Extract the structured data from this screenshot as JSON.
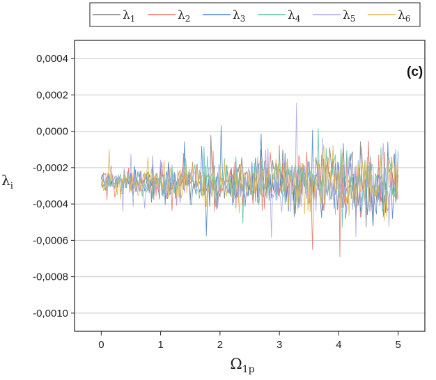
{
  "chart_data": {
    "type": "line",
    "title": "",
    "annotation": "(c)",
    "xlabel": {
      "main": "Ω",
      "sub": "1p"
    },
    "ylabel": {
      "main": "λ",
      "sub": "i"
    },
    "xlim": [
      -0.45,
      5.45
    ],
    "ylim": [
      -0.0011,
      0.0005
    ],
    "x_ticks": [
      0,
      1,
      2,
      3,
      4,
      5
    ],
    "x_tick_labels": [
      "0",
      "1",
      "2",
      "3",
      "4",
      "5"
    ],
    "y_ticks": [
      0.0004,
      0.0002,
      0.0,
      -0.0002,
      -0.0004,
      -0.0006,
      -0.0008,
      -0.001
    ],
    "y_tick_labels": [
      "0,0004",
      "0,0002",
      "0,0000",
      "-0,0002",
      "-0,0004",
      "-0,0006",
      "-0,0008",
      "-0,0010"
    ],
    "grid": "horizontal",
    "legend_position": "top",
    "x_range": [
      0,
      5
    ],
    "baseline_mean": -0.00028,
    "noise_envelope": [
      {
        "x": 0,
        "amplitude": 6e-05
      },
      {
        "x": 1,
        "amplitude": 0.0001
      },
      {
        "x": 2,
        "amplitude": 0.00013
      },
      {
        "x": 3,
        "amplitude": 0.00016
      },
      {
        "x": 4,
        "amplitude": 0.0002
      },
      {
        "x": 5,
        "amplitude": 0.00022
      }
    ],
    "series": [
      {
        "name": "λ",
        "sub": "1",
        "color": "#7f7f7f"
      },
      {
        "name": "λ",
        "sub": "2",
        "color": "#e8736c"
      },
      {
        "name": "λ",
        "sub": "3",
        "color": "#4f86c6"
      },
      {
        "name": "λ",
        "sub": "4",
        "color": "#5bc4a8"
      },
      {
        "name": "λ",
        "sub": "5",
        "color": "#a9a9e6"
      },
      {
        "name": "λ",
        "sub": "6",
        "color": "#e0b94a"
      }
    ]
  }
}
